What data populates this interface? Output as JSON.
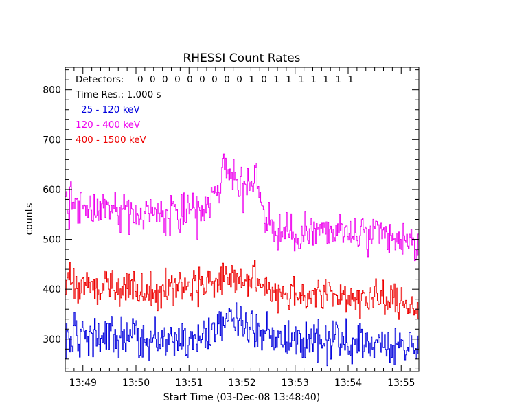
{
  "chart_data": {
    "type": "line",
    "title": "RHESSI Count Rates",
    "xlabel": "Start Time (03-Dec-08 13:48:40)",
    "ylabel": "counts",
    "x_ticks": [
      "13:49",
      "13:50",
      "13:51",
      "13:52",
      "13:53",
      "13:54",
      "13:55"
    ],
    "y_ticks": [
      300,
      400,
      500,
      600,
      700,
      800
    ],
    "xlim": [
      "13:48:40",
      "13:55:20"
    ],
    "ylim": [
      235,
      845
    ],
    "annotations": {
      "detectors_label": "Detectors:",
      "detectors_value": "0 0 0 0 0 0 0 0 0 1 0 1 1 1 1 1 1 1",
      "time_res": "Time Res.: 1.000 s"
    },
    "series": [
      {
        "name": "25 - 120 keV",
        "color": "#0000dd",
        "points": [
          [
            "13:48:40",
            310
          ],
          [
            "13:49:00",
            300
          ],
          [
            "13:49:20",
            305
          ],
          [
            "13:49:40",
            300
          ],
          [
            "13:50:00",
            300
          ],
          [
            "13:50:20",
            300
          ],
          [
            "13:50:40",
            298
          ],
          [
            "13:51:00",
            305
          ],
          [
            "13:51:20",
            310
          ],
          [
            "13:51:35",
            330
          ],
          [
            "13:51:50",
            340
          ],
          [
            "13:52:05",
            330
          ],
          [
            "13:52:20",
            315
          ],
          [
            "13:52:40",
            305
          ],
          [
            "13:53:00",
            300
          ],
          [
            "13:53:30",
            296
          ],
          [
            "13:54:00",
            295
          ],
          [
            "13:54:30",
            292
          ],
          [
            "13:55:00",
            288
          ],
          [
            "13:55:20",
            285
          ]
        ]
      },
      {
        "name": "120 - 400 keV",
        "color": "#ee00ee",
        "points": [
          [
            "13:48:40",
            575
          ],
          [
            "13:49:00",
            565
          ],
          [
            "13:49:20",
            565
          ],
          [
            "13:49:40",
            560
          ],
          [
            "13:50:00",
            555
          ],
          [
            "13:50:20",
            553
          ],
          [
            "13:50:40",
            550
          ],
          [
            "13:51:00",
            552
          ],
          [
            "13:51:20",
            555
          ],
          [
            "13:51:30",
            590
          ],
          [
            "13:51:40",
            650
          ],
          [
            "13:51:50",
            620
          ],
          [
            "13:52:00",
            605
          ],
          [
            "13:52:10",
            615
          ],
          [
            "13:52:15",
            650
          ],
          [
            "13:52:25",
            535
          ],
          [
            "13:52:40",
            510
          ],
          [
            "13:53:00",
            515
          ],
          [
            "13:53:30",
            515
          ],
          [
            "13:54:00",
            512
          ],
          [
            "13:54:30",
            505
          ],
          [
            "13:55:00",
            495
          ],
          [
            "13:55:20",
            485
          ]
        ]
      },
      {
        "name": "400 - 1500 keV",
        "color": "#ee0000",
        "points": [
          [
            "13:48:40",
            415
          ],
          [
            "13:49:00",
            410
          ],
          [
            "13:49:20",
            412
          ],
          [
            "13:49:40",
            405
          ],
          [
            "13:50:00",
            402
          ],
          [
            "13:50:20",
            400
          ],
          [
            "13:50:40",
            400
          ],
          [
            "13:51:00",
            410
          ],
          [
            "13:51:20",
            412
          ],
          [
            "13:51:40",
            420
          ],
          [
            "13:52:00",
            420
          ],
          [
            "13:52:20",
            410
          ],
          [
            "13:52:40",
            395
          ],
          [
            "13:53:00",
            390
          ],
          [
            "13:53:30",
            390
          ],
          [
            "13:54:00",
            385
          ],
          [
            "13:54:30",
            380
          ],
          [
            "13:55:00",
            372
          ],
          [
            "13:55:20",
            368
          ]
        ]
      }
    ]
  }
}
